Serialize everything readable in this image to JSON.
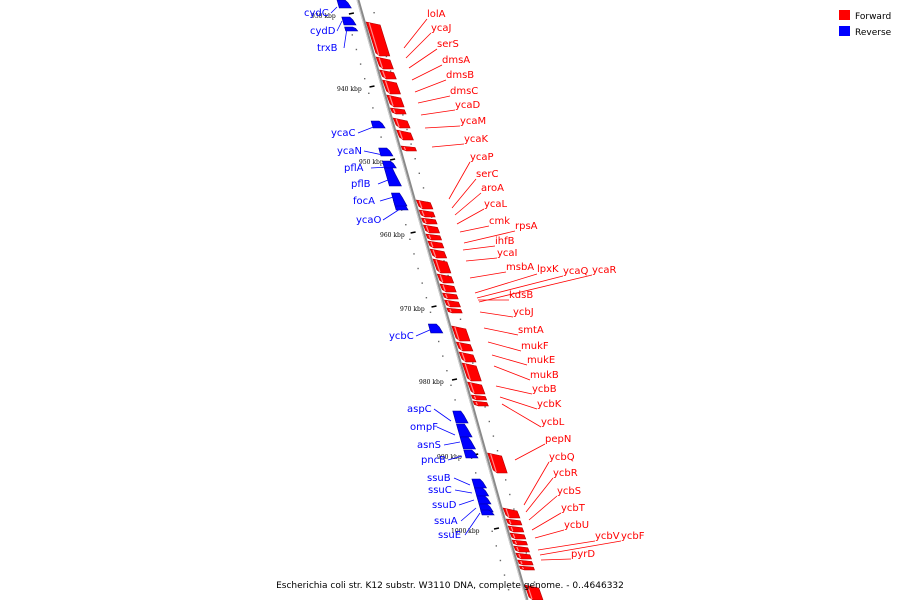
{
  "colors": {
    "forward": "#ff0000",
    "reverse": "#0000ff",
    "forward_dark": "#b40000",
    "reverse_dark": "#0000a0",
    "axis": "#888888",
    "axis_dark": "#505050"
  },
  "legend": {
    "forward_label": "Forward",
    "reverse_label": "Reverse"
  },
  "caption": "Escherichia coli str. K12 substr. W3110 DNA, complete genome. - 0..4646332",
  "kbp_labels": [
    "930 kbp",
    "940 kbp",
    "950 kbp",
    "960 kbp",
    "970 kbp",
    "980 kbp",
    "990 kbp",
    "1000 kbp"
  ],
  "reverse_genes": [
    "cydC",
    "cydD",
    "trxB",
    "ycaC",
    "ycaN",
    "pflA",
    "pflB",
    "focA",
    "ycaO",
    "ycbC",
    "aspC",
    "ompF",
    "asnS",
    "pncB",
    "ssuB",
    "ssuC",
    "ssuD",
    "ssuA",
    "ssuE"
  ],
  "forward_genes": [
    "lolA",
    "ycaJ",
    "serS",
    "dmsA",
    "dmsB",
    "dmsC",
    "ycaD",
    "ycaM",
    "ycaK",
    "ycaP",
    "serC",
    "aroA",
    "ycaL",
    "cmk",
    "rpsA",
    "ihfB",
    "ycaI",
    "msbA",
    "lpxK",
    "ycaQ",
    "ycaR",
    "kdsB",
    "ycbJ",
    "smtA",
    "mukF",
    "mukE",
    "mukB",
    "ycbB",
    "ycbK",
    "ycbL",
    "pepN",
    "ycbQ",
    "ycbR",
    "ycbS",
    "ycbT",
    "ycbU",
    "ycbV",
    "ycbF",
    "pyrD"
  ]
}
